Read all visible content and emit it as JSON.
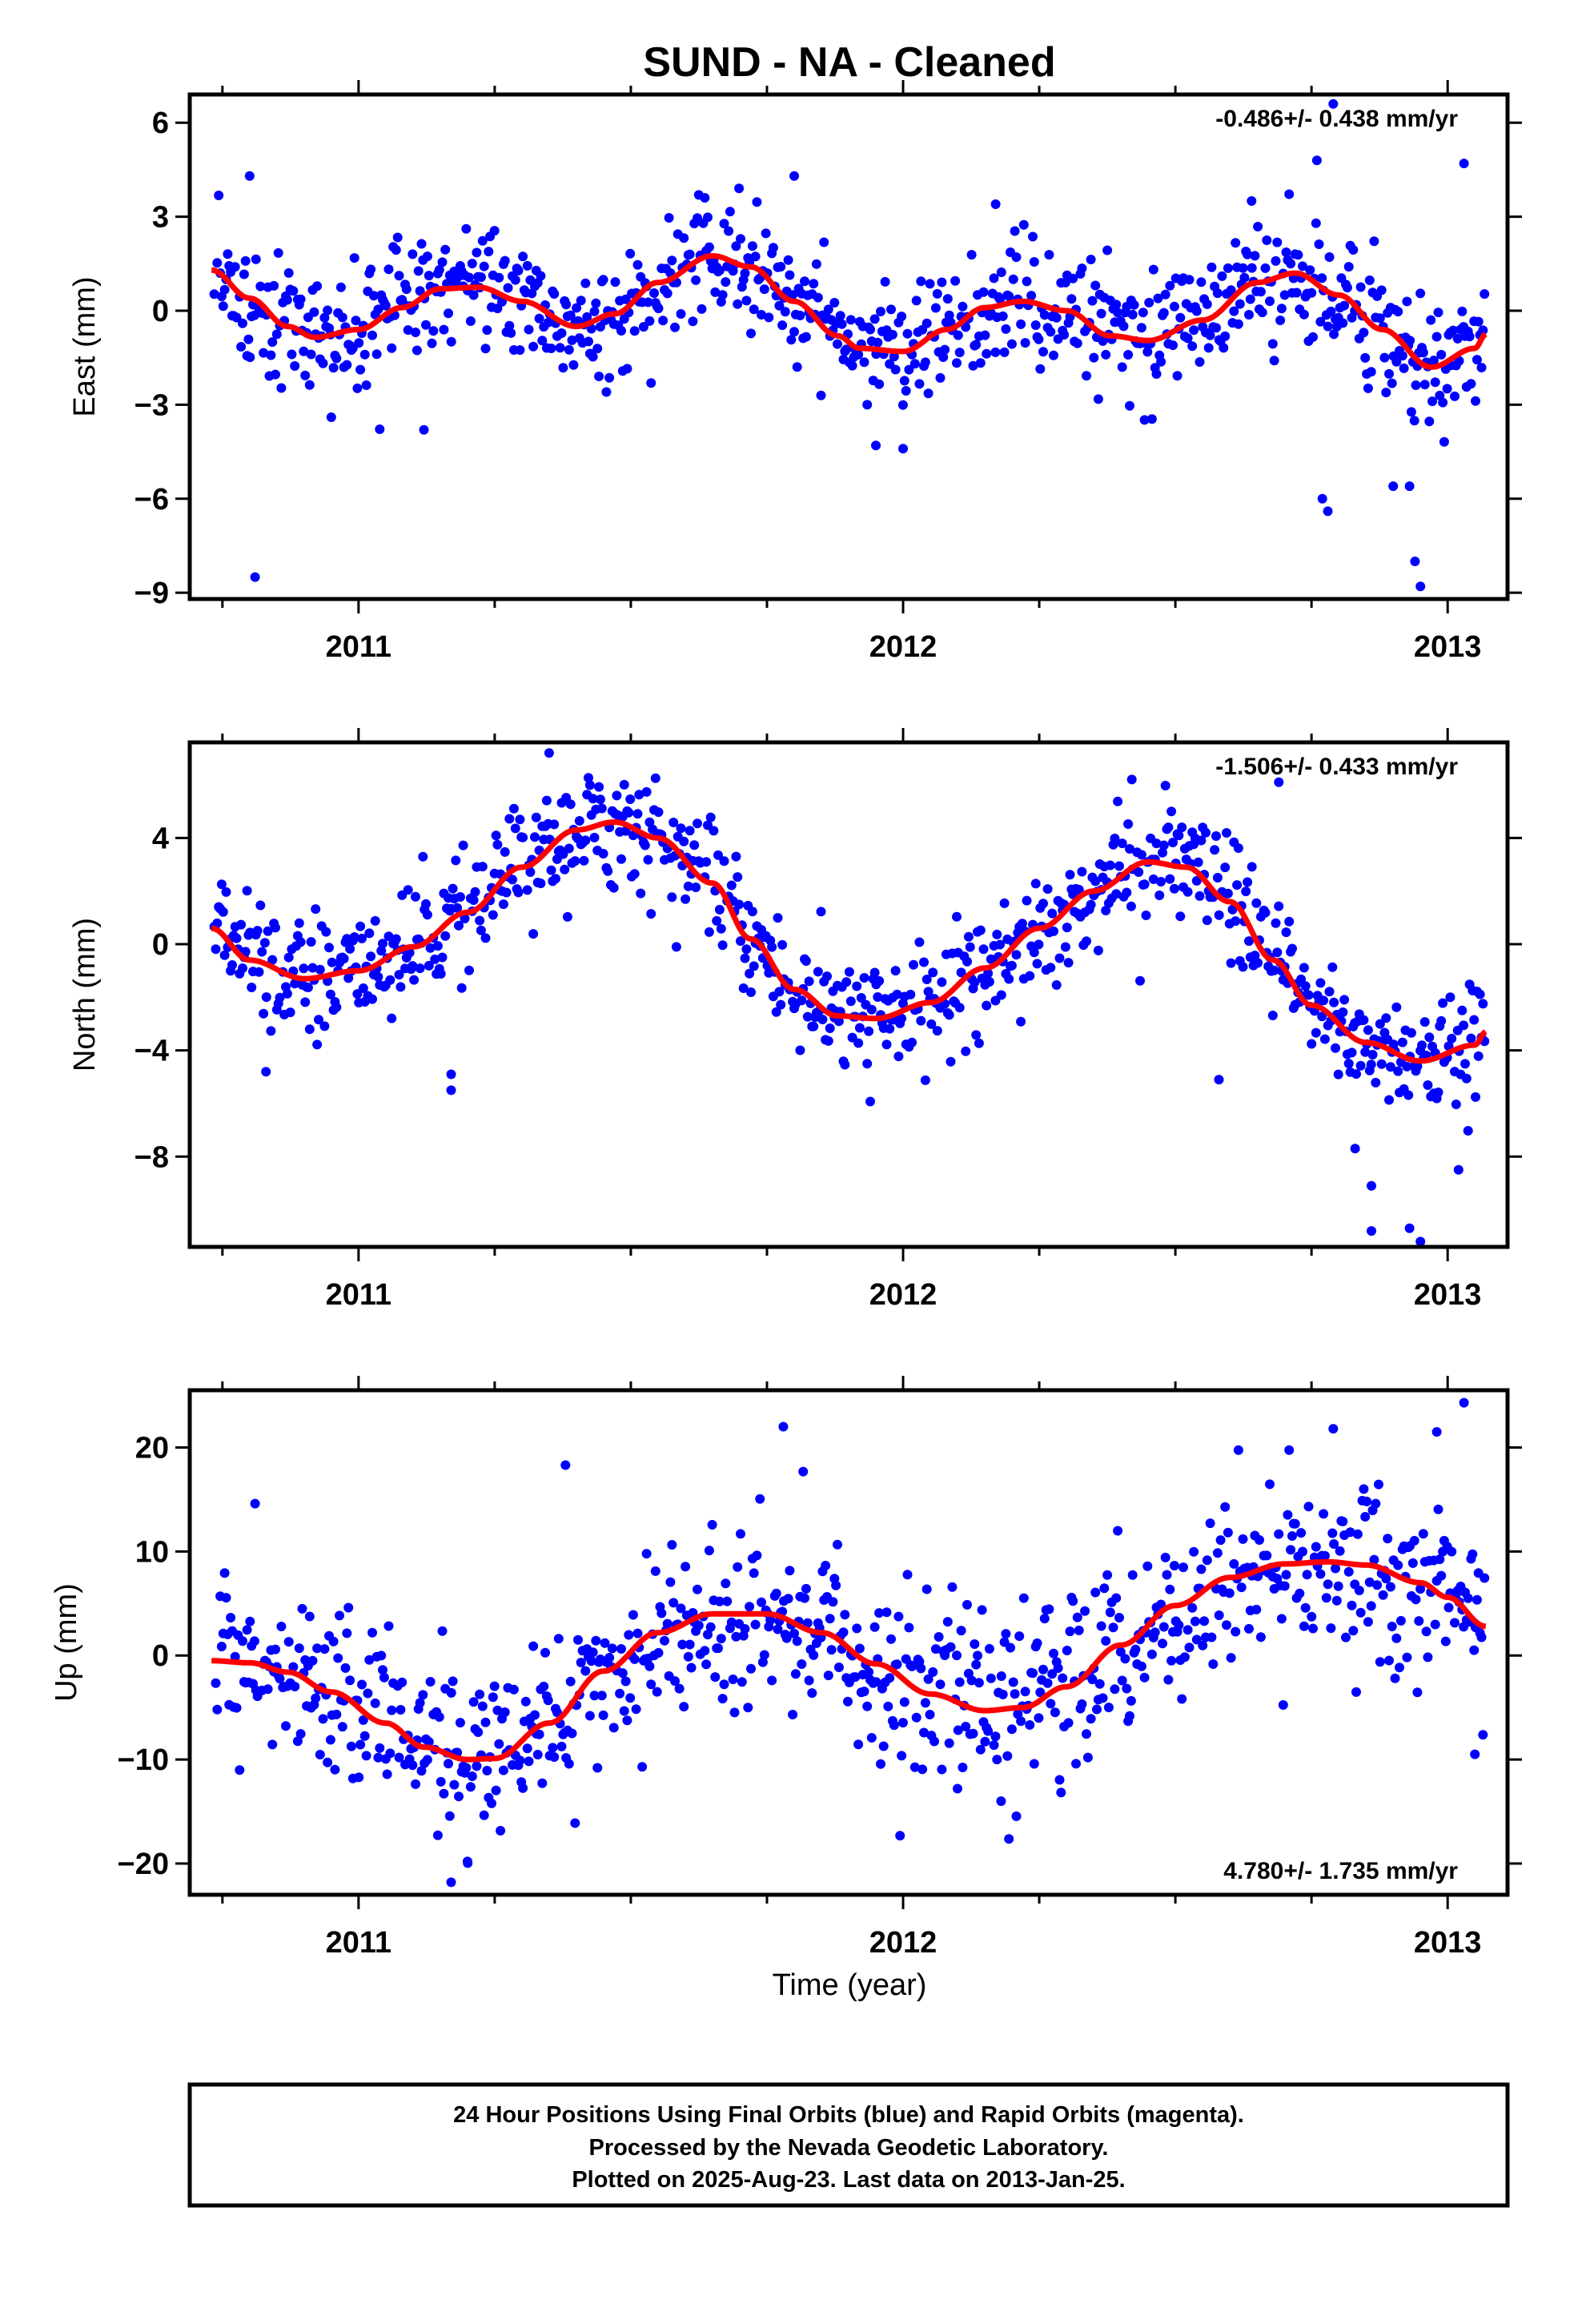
{
  "title": "SUND  - NA - Cleaned",
  "xlabel": "Time (year)",
  "caption": [
    "24 Hour Positions Using Final Orbits (blue) and Rapid Orbits (magenta).",
    "Processed by the Nevada Geodetic Laboratory.",
    "Plotted on 2025-Aug-23. Last data on 2013-Jan-25."
  ],
  "colors": {
    "final_orbits": "#0000ff",
    "fit_curve": "#ff0000",
    "frame": "#000000"
  },
  "chart_data": [
    {
      "type": "scatter",
      "ylabel": "East (mm)",
      "rate": "-0.486+/- 0.438 mm/yr",
      "rate_position": "top-right",
      "xlim": [
        2010.69,
        2013.11
      ],
      "ylim": [
        -9.2,
        6.9
      ],
      "xticks": [
        2011,
        2012,
        2013
      ],
      "xtick_labels": [
        "2011",
        "2012",
        "2013"
      ],
      "yticks": [
        6,
        3,
        0,
        -3,
        -6,
        -9
      ],
      "ytick_labels": [
        "6",
        "3",
        "0",
        "−3",
        "−6",
        "−9"
      ],
      "grid": false,
      "series": [
        {
          "role": "observations",
          "color": "#0000ff",
          "noise": 1.0
        },
        {
          "role": "fit",
          "color": "#ff0000",
          "x": [
            2010.73,
            2010.8,
            2010.87,
            2010.92,
            2011.0,
            2011.08,
            2011.15,
            2011.22,
            2011.3,
            2011.4,
            2011.47,
            2011.55,
            2011.65,
            2011.72,
            2011.8,
            2011.88,
            2011.92,
            2012.0,
            2012.08,
            2012.15,
            2012.22,
            2012.3,
            2012.38,
            2012.45,
            2012.55,
            2012.65,
            2012.72,
            2012.8,
            2012.88,
            2012.97,
            2013.05,
            2013.07
          ],
          "y": [
            1.3,
            0.4,
            -0.5,
            -0.85,
            -0.6,
            0.1,
            0.7,
            0.75,
            0.3,
            -0.5,
            -0.1,
            0.9,
            1.75,
            1.4,
            0.3,
            -0.8,
            -1.2,
            -1.3,
            -0.6,
            0.1,
            0.3,
            0.0,
            -0.8,
            -0.95,
            -0.3,
            0.9,
            1.2,
            0.5,
            -0.6,
            -1.8,
            -1.2,
            -0.75
          ]
        }
      ],
      "outliers": [
        [
          2010.81,
          -8.5
        ],
        [
          2010.8,
          4.3
        ],
        [
          2010.95,
          -3.4
        ],
        [
          2011.8,
          4.3
        ],
        [
          2012.17,
          3.4
        ],
        [
          2012.64,
          3.5
        ],
        [
          2012.76,
          4.8
        ],
        [
          2012.79,
          6.6
        ],
        [
          2012.78,
          -6.4
        ],
        [
          2012.77,
          -6.0
        ],
        [
          2012.94,
          -8.0
        ],
        [
          2012.95,
          -8.8
        ],
        [
          2013.03,
          4.7
        ],
        [
          2012.9,
          -5.6
        ],
        [
          2012.93,
          -5.6
        ],
        [
          2011.12,
          -3.8
        ],
        [
          2011.95,
          -4.3
        ],
        [
          2012.0,
          -4.4
        ]
      ]
    },
    {
      "type": "scatter",
      "ylabel": "North (mm)",
      "rate": "-1.506+/- 0.433 mm/yr",
      "rate_position": "top-right",
      "xlim": [
        2010.69,
        2013.11
      ],
      "ylim": [
        -11.4,
        7.6
      ],
      "xticks": [
        2011,
        2012,
        2013
      ],
      "xtick_labels": [
        "2011",
        "2012",
        "2013"
      ],
      "yticks": [
        4,
        0,
        -4,
        -8
      ],
      "ytick_labels": [
        "4",
        "0",
        "−4",
        "−8"
      ],
      "grid": false,
      "series": [
        {
          "role": "observations",
          "color": "#0000ff",
          "noise": 1.1
        },
        {
          "role": "fit",
          "color": "#ff0000",
          "x": [
            2010.73,
            2010.8,
            2010.9,
            2011.0,
            2011.1,
            2011.2,
            2011.3,
            2011.4,
            2011.47,
            2011.55,
            2011.65,
            2011.72,
            2011.8,
            2011.88,
            2011.95,
            2012.05,
            2012.15,
            2012.25,
            2012.35,
            2012.45,
            2012.52,
            2012.6,
            2012.68,
            2012.75,
            2012.85,
            2012.95,
            2013.05,
            2013.07
          ],
          "y": [
            0.6,
            -0.6,
            -1.3,
            -1.0,
            -0.1,
            1.2,
            2.9,
            4.3,
            4.6,
            4.0,
            2.3,
            0.2,
            -1.7,
            -2.7,
            -2.8,
            -2.2,
            -0.9,
            0.6,
            2.0,
            3.1,
            2.9,
            1.6,
            -0.6,
            -2.3,
            -3.7,
            -4.4,
            -3.8,
            -3.3
          ]
        }
      ],
      "outliers": [
        [
          2011.17,
          -5.5
        ],
        [
          2011.17,
          -4.9
        ],
        [
          2010.83,
          -4.8
        ],
        [
          2012.58,
          -5.1
        ],
        [
          2012.69,
          6.1
        ],
        [
          2012.83,
          -7.7
        ],
        [
          2012.86,
          -9.1
        ],
        [
          2012.86,
          -10.8
        ],
        [
          2012.93,
          -10.7
        ],
        [
          2012.95,
          -11.2
        ],
        [
          2013.02,
          -8.5
        ],
        [
          2011.35,
          7.2
        ],
        [
          2012.42,
          6.2
        ]
      ]
    },
    {
      "type": "scatter",
      "ylabel": "Up (mm)",
      "rate": "4.780+/- 1.735 mm/yr",
      "rate_position": "bottom-right",
      "xlim": [
        2010.69,
        2013.11
      ],
      "ylim": [
        -23,
        25.5
      ],
      "xticks": [
        2011,
        2012,
        2013
      ],
      "xtick_labels": [
        "2011",
        "2012",
        "2013"
      ],
      "yticks": [
        20,
        10,
        0,
        -10,
        -20
      ],
      "ytick_labels": [
        "20",
        "10",
        "0",
        "−10",
        "−20"
      ],
      "grid": false,
      "series": [
        {
          "role": "observations",
          "color": "#0000ff",
          "noise": 4.2
        },
        {
          "role": "fit",
          "color": "#ff0000",
          "x": [
            2010.73,
            2010.8,
            2010.87,
            2010.95,
            2011.05,
            2011.12,
            2011.2,
            2011.25,
            2011.35,
            2011.45,
            2011.55,
            2011.65,
            2011.75,
            2011.85,
            2011.95,
            2012.05,
            2012.15,
            2012.22,
            2012.3,
            2012.4,
            2012.5,
            2012.6,
            2012.7,
            2012.78,
            2012.85,
            2012.95,
            2013.0,
            2013.07
          ],
          "y": [
            -0.5,
            -0.7,
            -1.6,
            -3.5,
            -6.5,
            -8.8,
            -10.0,
            -9.9,
            -6.5,
            -1.5,
            2.2,
            4.0,
            4.0,
            2.2,
            -0.8,
            -3.7,
            -5.3,
            -5.0,
            -3.0,
            1.0,
            4.8,
            7.5,
            8.8,
            9.0,
            8.7,
            7.0,
            5.6,
            2.8
          ]
        }
      ],
      "outliers": [
        [
          2011.38,
          18.3
        ],
        [
          2011.78,
          22.0
        ],
        [
          2012.79,
          21.8
        ],
        [
          2012.98,
          21.5
        ],
        [
          2013.03,
          24.3
        ],
        [
          2010.81,
          14.6
        ],
        [
          2011.17,
          -21.8
        ],
        [
          2011.2,
          -19.8
        ],
        [
          2012.1,
          -12.8
        ],
        [
          2012.18,
          -14.0
        ],
        [
          2013.05,
          -9.5
        ]
      ]
    }
  ]
}
